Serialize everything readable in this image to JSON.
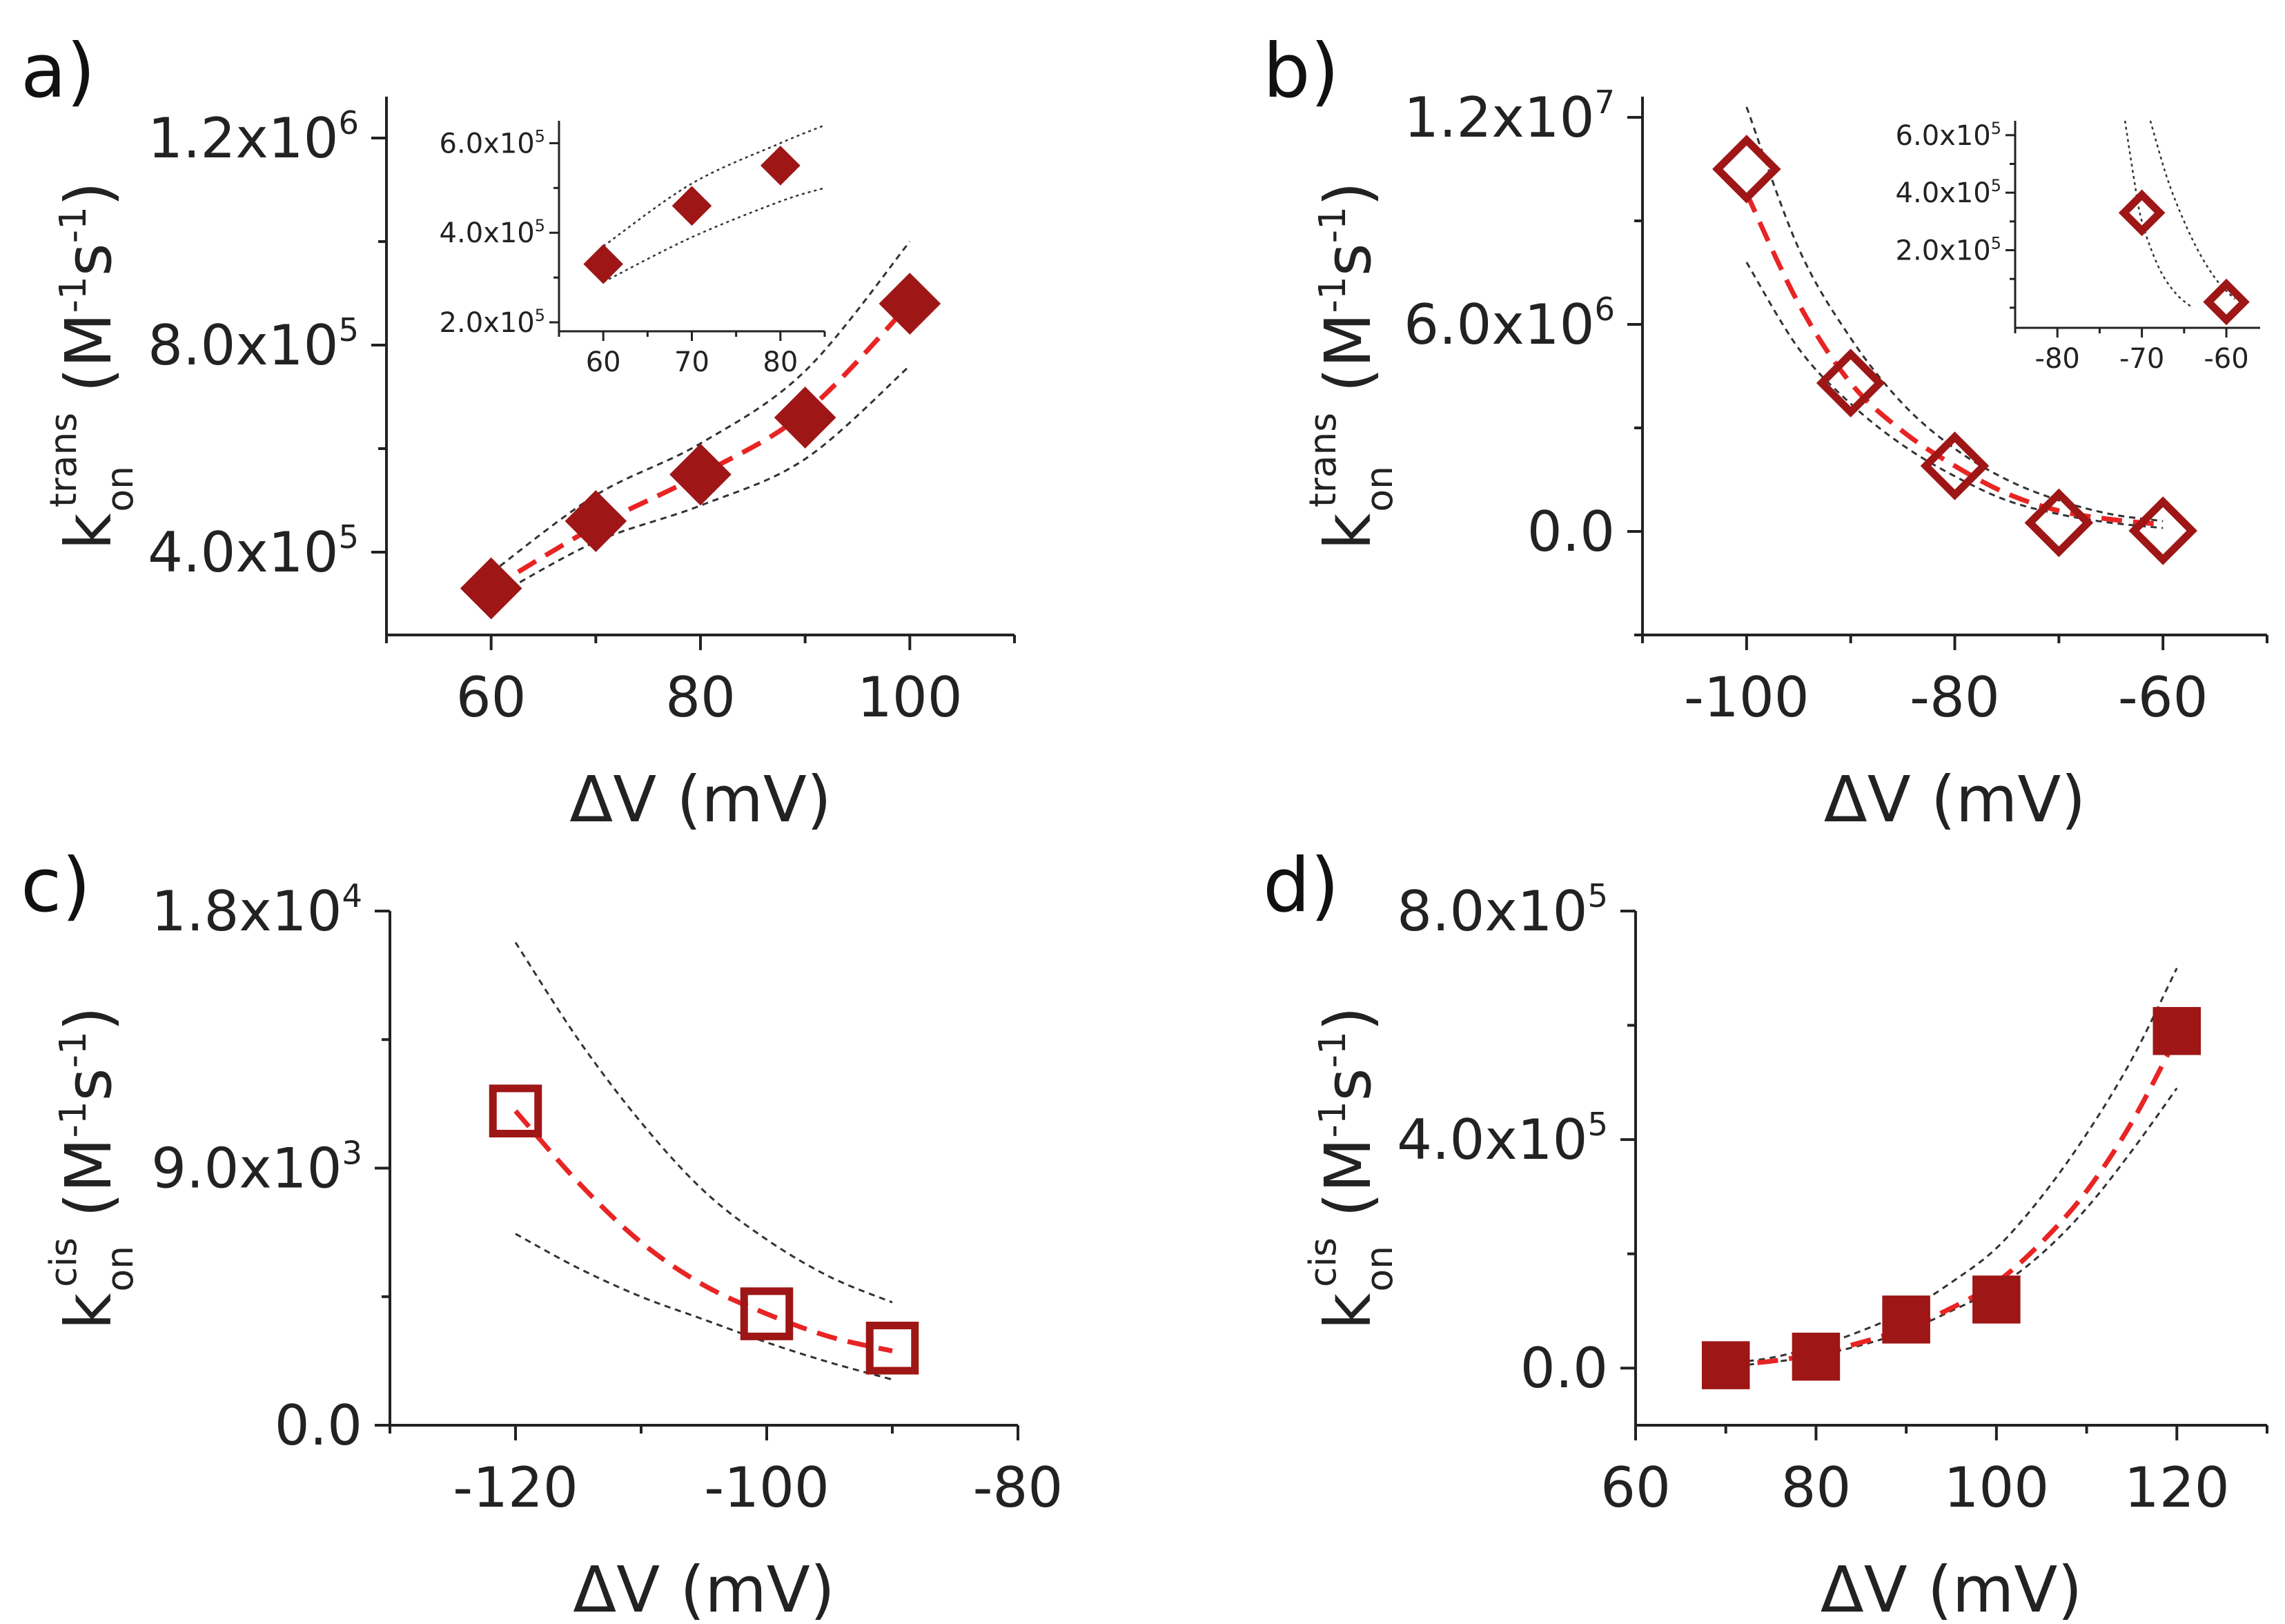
{
  "colors": {
    "marker": "#9e1616",
    "fit": "#e82424",
    "band": "#333333",
    "axis": "#222222"
  },
  "chart_data": [
    {
      "panel": "a)",
      "type": "scatter",
      "marker": "diamond",
      "filled": true,
      "xlabel": "ΔV (mV)",
      "ylabel": {
        "base": "k",
        "sup": "trans",
        "sub": "on",
        "units_open": " (M",
        "exp1": "-1",
        "units_mid": "s",
        "exp2": "-1",
        "units_close": ")"
      },
      "xlim": [
        50,
        110
      ],
      "ylim": [
        240000,
        1280000
      ],
      "xticks": [
        {
          "v": 60,
          "label": "60"
        },
        {
          "v": 80,
          "label": "80"
        },
        {
          "v": 100,
          "label": "100"
        }
      ],
      "yticks": [
        {
          "v": 400000,
          "m": "4.0x10",
          "e": "5"
        },
        {
          "v": 800000,
          "m": "8.0x10",
          "e": "5"
        },
        {
          "v": 1200000,
          "m": "1.2x10",
          "e": "6"
        }
      ],
      "x": [
        60,
        70,
        80,
        90,
        100
      ],
      "y": [
        330000,
        460000,
        550000,
        660000,
        880000
      ],
      "fit": {
        "x": [
          60,
          70,
          80,
          90,
          100
        ],
        "y": [
          330000,
          450000,
          550000,
          670000,
          880000
        ]
      },
      "band_upper": {
        "x": [
          60,
          70,
          80,
          90,
          100
        ],
        "y": [
          360000,
          510000,
          610000,
          750000,
          1000000
        ]
      },
      "band_lower": {
        "x": [
          60,
          70,
          80,
          90,
          100
        ],
        "y": [
          310000,
          420000,
          490000,
          580000,
          760000
        ]
      },
      "inset": {
        "xlim": [
          55,
          85
        ],
        "ylim": [
          180000,
          650000
        ],
        "xticks": [
          {
            "v": 60,
            "label": "60"
          },
          {
            "v": 70,
            "label": "70"
          },
          {
            "v": 80,
            "label": "80"
          }
        ],
        "yticks": [
          {
            "v": 200000,
            "m": "2.0x10",
            "e": "5"
          },
          {
            "v": 400000,
            "m": "4.0x10",
            "e": "5"
          },
          {
            "v": 600000,
            "m": "6.0x10",
            "e": "5"
          }
        ],
        "x": [
          60,
          70,
          80
        ],
        "y": [
          330000,
          460000,
          550000
        ],
        "band_upper": {
          "x": [
            60,
            70,
            80,
            85
          ],
          "y": [
            370000,
            510000,
            600000,
            640000
          ]
        },
        "band_lower": {
          "x": [
            60,
            70,
            80,
            85
          ],
          "y": [
            290000,
            390000,
            470000,
            500000
          ]
        }
      }
    },
    {
      "panel": "b)",
      "type": "scatter",
      "marker": "diamond",
      "filled": false,
      "xlabel": "ΔV (mV)",
      "ylabel": {
        "base": "k",
        "sup": "trans",
        "sub": "on",
        "units_open": " (M",
        "exp1": "-1",
        "units_mid": "s",
        "exp2": "-1",
        "units_close": ")"
      },
      "xlim": [
        -110,
        -50
      ],
      "ylim": [
        -3000000,
        12600000
      ],
      "xticks": [
        {
          "v": -100,
          "label": "-100"
        },
        {
          "v": -80,
          "label": "-80"
        },
        {
          "v": -60,
          "label": "-60"
        }
      ],
      "yticks": [
        {
          "v": 0,
          "m": "0.0",
          "e": ""
        },
        {
          "v": 6000000,
          "m": "6.0x10",
          "e": "6"
        },
        {
          "v": 12000000,
          "m": "1.2x10",
          "e": "7"
        }
      ],
      "x": [
        -100,
        -90,
        -80,
        -70,
        -60
      ],
      "y": [
        10500000,
        4300000,
        1900000,
        250000,
        20000
      ],
      "fit": {
        "x": [
          -100,
          -95,
          -90,
          -85,
          -80,
          -75,
          -70,
          -65,
          -60
        ],
        "y": [
          9800000,
          6600000,
          4300000,
          2900000,
          1900000,
          1100000,
          600000,
          350000,
          200000
        ]
      },
      "band_upper": {
        "x": [
          -100,
          -95,
          -90,
          -85,
          -80,
          -75,
          -70,
          -65,
          -60
        ],
        "y": [
          12300000,
          8200000,
          5600000,
          3700000,
          2400000,
          1500000,
          900000,
          500000,
          300000
        ]
      },
      "band_lower": {
        "x": [
          -100,
          -95,
          -90,
          -85,
          -80,
          -75,
          -70,
          -65,
          -60
        ],
        "y": [
          7800000,
          5300000,
          3700000,
          2500000,
          1600000,
          900000,
          500000,
          250000,
          100000
        ]
      },
      "inset": {
        "xlim": [
          -85,
          -56
        ],
        "ylim": [
          -70000,
          650000
        ],
        "xticks": [
          {
            "v": -80,
            "label": "-80"
          },
          {
            "v": -70,
            "label": "-70"
          },
          {
            "v": -60,
            "label": "-60"
          }
        ],
        "yticks": [
          {
            "v": 200000,
            "m": "2.0x10",
            "e": "5"
          },
          {
            "v": 400000,
            "m": "4.0x10",
            "e": "5"
          },
          {
            "v": 600000,
            "m": "6.0x10",
            "e": "5"
          }
        ],
        "x": [
          -70,
          -60
        ],
        "y": [
          330000,
          20000
        ],
        "band_upper": {
          "x": [
            -69,
            -67,
            -65,
            -63,
            -61,
            -59
          ],
          "y": [
            650000,
            450000,
            300000,
            180000,
            90000,
            30000
          ]
        },
        "band_lower": {
          "x": [
            -72,
            -71,
            -70,
            -68,
            -66,
            -64
          ],
          "y": [
            650000,
            460000,
            300000,
            140000,
            50000,
            0
          ]
        }
      }
    },
    {
      "panel": "c)",
      "type": "scatter",
      "marker": "square",
      "filled": false,
      "xlabel": "ΔV (mV)",
      "ylabel": {
        "base": "k",
        "sup": "cis",
        "sub": "on",
        "units_open": " (M",
        "exp1": "-1",
        "units_mid": "s",
        "exp2": "-1",
        "units_close": ")"
      },
      "xlim": [
        -130,
        -80
      ],
      "ylim": [
        0,
        18000
      ],
      "xticks": [
        {
          "v": -120,
          "label": "-120"
        },
        {
          "v": -100,
          "label": "-100"
        },
        {
          "v": -80,
          "label": "-80"
        }
      ],
      "yticks": [
        {
          "v": 0,
          "m": "0.0",
          "e": ""
        },
        {
          "v": 9000,
          "m": "9.0x10",
          "e": "3"
        },
        {
          "v": 18000,
          "m": "1.8x10",
          "e": "4"
        }
      ],
      "x": [
        -120,
        -100,
        -90
      ],
      "y": [
        11000,
        3900,
        2700
      ],
      "fit": {
        "x": [
          -120,
          -115,
          -110,
          -105,
          -100,
          -95,
          -90
        ],
        "y": [
          11000,
          8500,
          6400,
          4900,
          3900,
          3100,
          2600
        ]
      },
      "band_upper": {
        "x": [
          -120,
          -115,
          -110,
          -105,
          -100,
          -95,
          -90
        ],
        "y": [
          16900,
          13500,
          10600,
          8200,
          6500,
          5200,
          4300
        ]
      },
      "band_lower": {
        "x": [
          -120,
          -115,
          -110,
          -105,
          -100,
          -95,
          -90
        ],
        "y": [
          6700,
          5500,
          4500,
          3700,
          2900,
          2200,
          1600
        ]
      }
    },
    {
      "panel": "d)",
      "type": "scatter",
      "marker": "square",
      "filled": true,
      "xlabel": "ΔV (mV)",
      "ylabel": {
        "base": "k",
        "sup": "cis",
        "sub": "on",
        "units_open": " (M",
        "exp1": "-1",
        "units_mid": "s",
        "exp2": "-1",
        "units_close": ")"
      },
      "xlim": [
        60,
        130
      ],
      "ylim": [
        -100000,
        800000
      ],
      "xticks": [
        {
          "v": 60,
          "label": "60"
        },
        {
          "v": 80,
          "label": "80"
        },
        {
          "v": 100,
          "label": "100"
        },
        {
          "v": 120,
          "label": "120"
        }
      ],
      "yticks": [
        {
          "v": 0,
          "m": "0.0",
          "e": ""
        },
        {
          "v": 400000,
          "m": "4.0x10",
          "e": "5"
        },
        {
          "v": 800000,
          "m": "8.0x10",
          "e": "5"
        }
      ],
      "x": [
        70,
        80,
        90,
        100,
        120
      ],
      "y": [
        5000,
        20000,
        85000,
        120000,
        590000
      ],
      "fit": {
        "x": [
          70,
          75,
          80,
          85,
          90,
          95,
          100,
          105,
          110,
          115,
          120
        ],
        "y": [
          5000,
          12000,
          25000,
          45000,
          70000,
          105000,
          150000,
          220000,
          310000,
          430000,
          580000
        ]
      },
      "band_upper": {
        "x": [
          70,
          75,
          80,
          85,
          90,
          95,
          100,
          105,
          110,
          115,
          120
        ],
        "y": [
          8000,
          18000,
          38000,
          65000,
          100000,
          150000,
          210000,
          300000,
          410000,
          540000,
          700000
        ]
      },
      "band_lower": {
        "x": [
          70,
          75,
          80,
          85,
          90,
          95,
          100,
          105,
          110,
          115,
          120
        ],
        "y": [
          3000,
          10000,
          22000,
          40000,
          65000,
          100000,
          140000,
          200000,
          280000,
          380000,
          490000
        ]
      }
    }
  ]
}
